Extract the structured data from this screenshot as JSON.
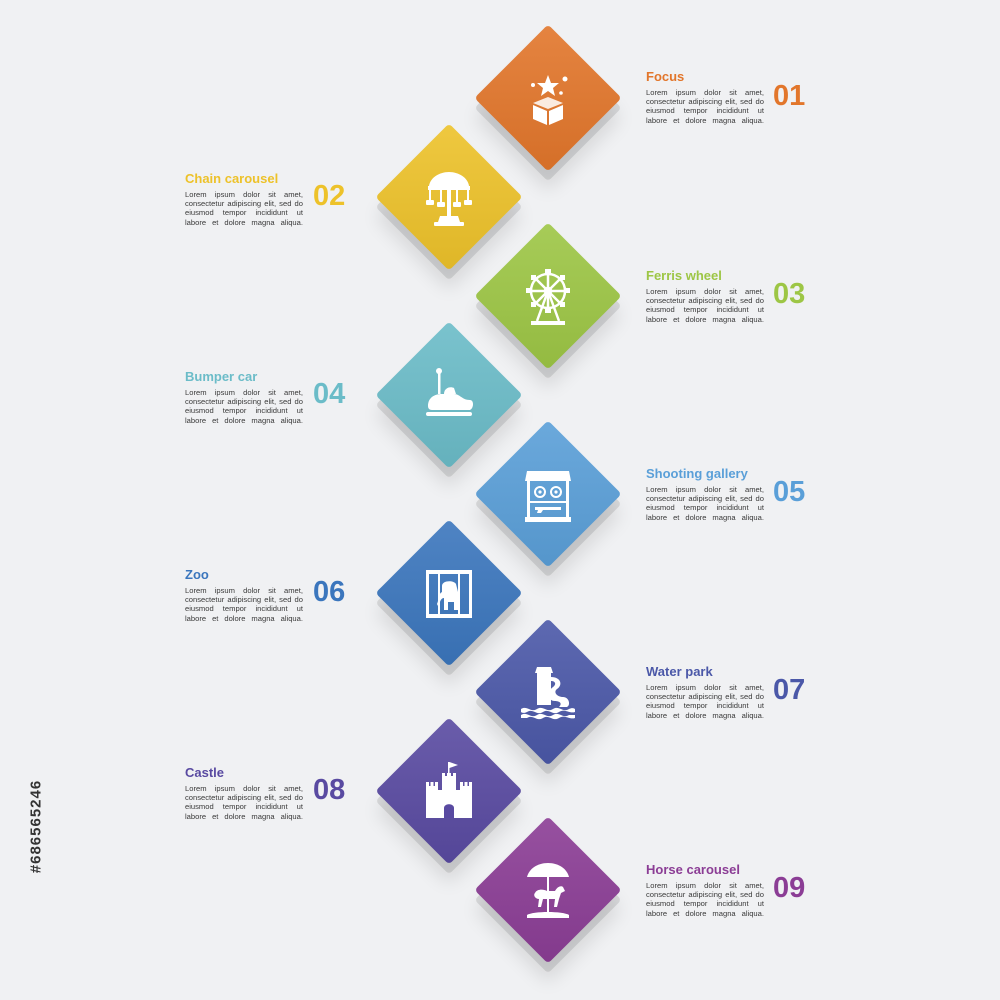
{
  "side_text": "#686565246",
  "steps": [
    {
      "number": "01",
      "title": "Focus",
      "color": "#e2762b",
      "icon": "magic-box-icon",
      "text": "Lorem ipsum dolor sit amet, consectetur adipiscing elit, sed do eiusmod tempor incididunt ut labore et dolore magna aliqua."
    },
    {
      "number": "02",
      "title": "Chain carousel",
      "color": "#edc22a",
      "icon": "chain-carousel-icon",
      "text": "Lorem ipsum dolor sit amet, consectetur adipiscing elit, sed do eiusmod tempor incididunt ut labore et dolore magna aliqua."
    },
    {
      "number": "03",
      "title": "Ferris wheel",
      "color": "#9dc645",
      "icon": "ferris-wheel-icon",
      "text": "Lorem ipsum dolor sit amet, consectetur adipiscing elit, sed do eiusmod tempor incididunt ut labore et dolore magna aliqua."
    },
    {
      "number": "04",
      "title": "Bumper car",
      "color": "#6bbcc8",
      "icon": "bumper-car-icon",
      "text": "Lorem ipsum dolor sit amet, consectetur adipiscing elit, sed do eiusmod tempor incididunt ut labore et dolore magna aliqua."
    },
    {
      "number": "05",
      "title": "Shooting gallery",
      "color": "#5a9fd8",
      "icon": "shooting-gallery-icon",
      "text": "Lorem ipsum dolor sit amet, consectetur adipiscing elit, sed do eiusmod tempor incididunt ut labore et dolore magna aliqua."
    },
    {
      "number": "06",
      "title": "Zoo",
      "color": "#3b76bd",
      "icon": "zoo-cage-icon",
      "text": "Lorem ipsum dolor sit amet, consectetur adipiscing elit, sed do eiusmod tempor incididunt ut labore et dolore magna aliqua."
    },
    {
      "number": "07",
      "title": "Water park",
      "color": "#4b58a8",
      "icon": "water-slide-icon",
      "text": "Lorem ipsum dolor sit amet, consectetur adipiscing elit, sed do eiusmod tempor incididunt ut labore et dolore magna aliqua."
    },
    {
      "number": "08",
      "title": "Castle",
      "color": "#594aa1",
      "icon": "castle-icon",
      "text": "Lorem ipsum dolor sit amet, consectetur adipiscing elit, sed do eiusmod tempor incididunt ut labore et dolore magna aliqua."
    },
    {
      "number": "09",
      "title": "Horse carousel",
      "color": "#8b3d95",
      "icon": "horse-carousel-icon",
      "text": "Lorem ipsum dolor sit amet, consectetur adipiscing elit, sed do eiusmod tempor incididunt ut labore et dolore magna aliqua."
    }
  ]
}
